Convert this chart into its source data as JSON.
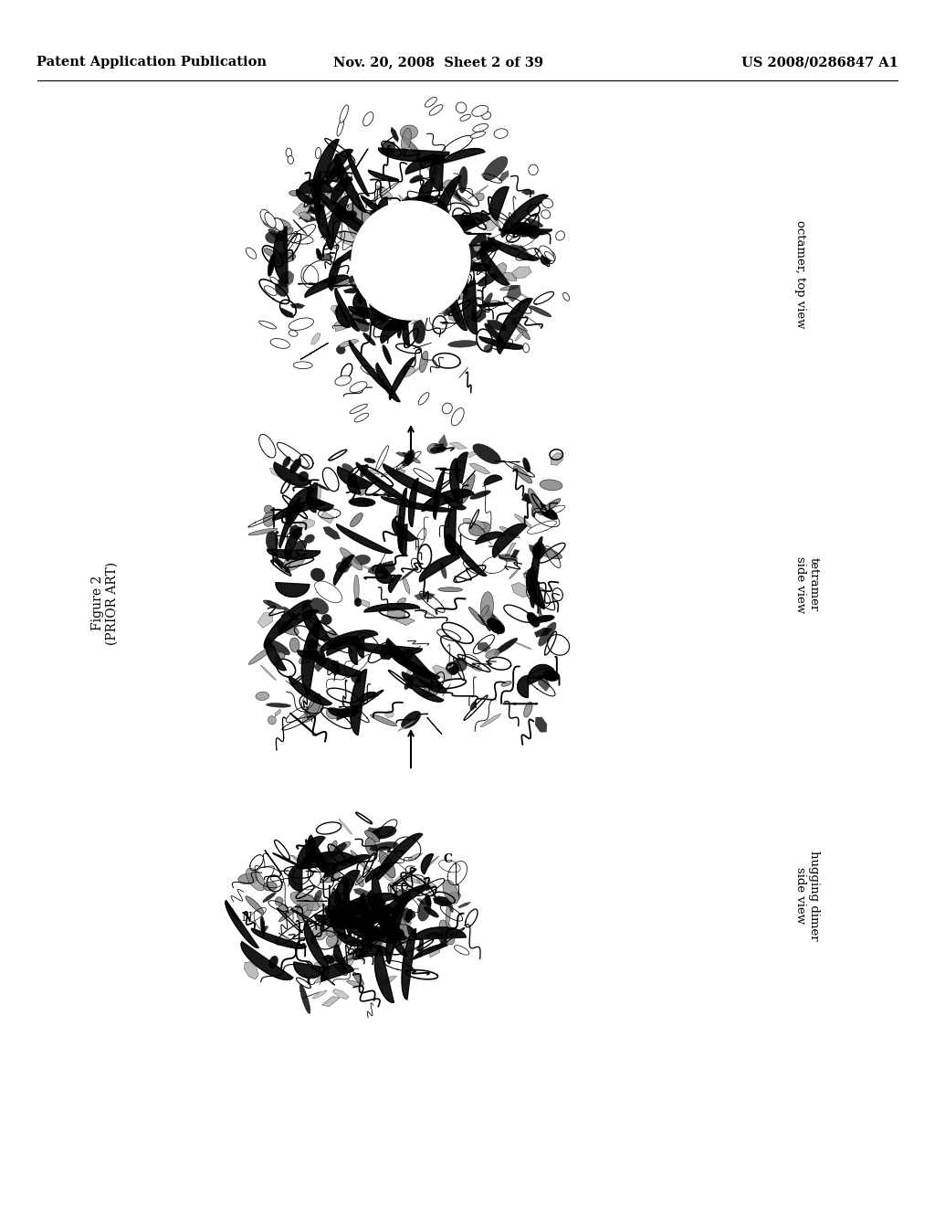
{
  "background_color": "#ffffff",
  "header_left": "Patent Application Publication",
  "header_center": "Nov. 20, 2008  Sheet 2 of 39",
  "header_right": "US 2008/0286847 A1",
  "header_fontsize": 10.5,
  "figure_label": "Figure 2",
  "figure_sublabel": "(PRIOR ART)",
  "label_fontsize": 10,
  "octamer_label": "octamer, top view",
  "tetramer_label1": "tetramer",
  "tetramer_label2": "side view",
  "dimer_label1": "hugging dimer",
  "dimer_label2": "side view",
  "text_color": "#000000"
}
